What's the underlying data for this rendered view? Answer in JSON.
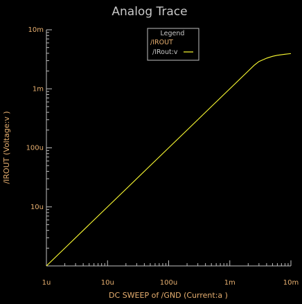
{
  "colors": {
    "background": "#000000",
    "axis": "#c0c0c0",
    "title": "#c8c8c8",
    "label": "#e8b070",
    "tick_label": "#e8b070",
    "legend_box_bg": "#000000",
    "legend_box_border": "#c0c0c0",
    "trace": "#ffff33"
  },
  "chart_data": {
    "type": "line",
    "title": "Analog Trace",
    "xlabel": "DC SWEEP of /GND (Current:a )",
    "ylabel": "/IROUT (Voltage:v )",
    "xscale": "log",
    "yscale": "log",
    "xlim": [
      1e-06,
      0.01
    ],
    "ylim": [
      1e-06,
      0.01
    ],
    "grid": false,
    "legend_position": "top-center",
    "xticks": [
      {
        "value": 1e-06,
        "label": "1u"
      },
      {
        "value": 1e-05,
        "label": "10u"
      },
      {
        "value": 0.0001,
        "label": "100u"
      },
      {
        "value": 0.001,
        "label": "1m"
      },
      {
        "value": 0.01,
        "label": "10m"
      }
    ],
    "yticks": [
      {
        "value": 1e-05,
        "label": "10u"
      },
      {
        "value": 0.0001,
        "label": "100u"
      },
      {
        "value": 0.001,
        "label": "1m"
      },
      {
        "value": 0.01,
        "label": "10m"
      }
    ],
    "legend": {
      "title": "Legend",
      "group": "/IROUT",
      "entries": [
        {
          "label": "/IRout:v"
        }
      ]
    },
    "series": [
      {
        "x": [
          1e-06,
          2e-06,
          5e-06,
          1e-05,
          2e-05,
          5e-05,
          0.0001,
          0.0002,
          0.0005,
          0.001,
          0.0015,
          0.002,
          0.0025,
          0.003,
          0.004,
          0.005,
          0.006,
          0.008,
          0.01
        ],
        "y": [
          1e-06,
          2e-06,
          5e-06,
          1e-05,
          2e-05,
          5e-05,
          0.0001,
          0.0002,
          0.0005,
          0.001,
          0.0015,
          0.002,
          0.0025,
          0.0029,
          0.0033,
          0.00355,
          0.0037,
          0.00385,
          0.00395
        ]
      }
    ]
  }
}
